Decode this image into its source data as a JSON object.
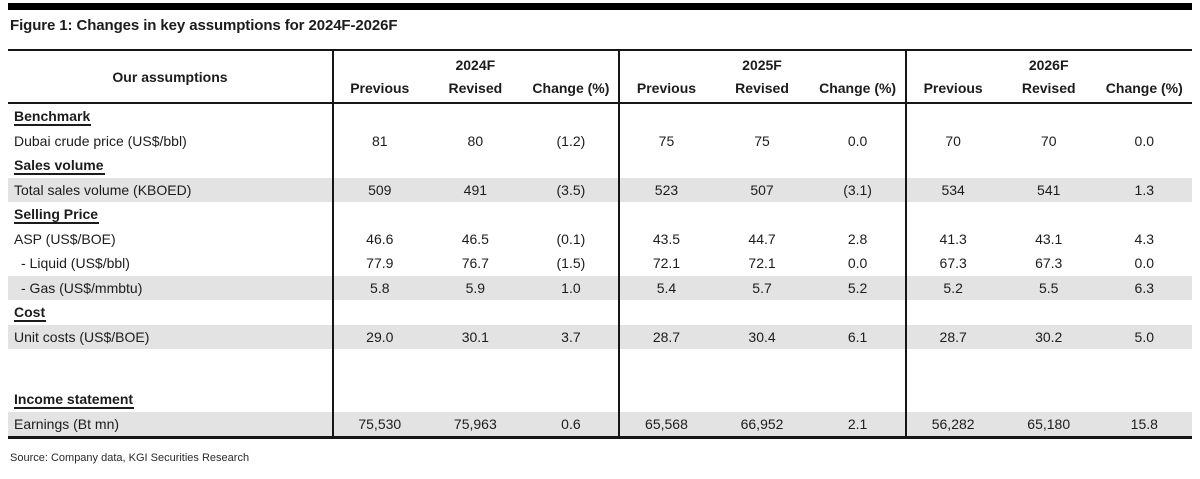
{
  "page": {
    "title": "Figure 1: Changes in key assumptions for 2024F-2026F",
    "source": "Source: Company data, KGI Securities Research"
  },
  "colors": {
    "shaded_row": "#e3e3e3",
    "rule": "#161616",
    "text": "#1c1c1c",
    "top_bar": "#000000"
  },
  "table": {
    "row_header": "Our assumptions",
    "year_groups": [
      {
        "label": "2024F",
        "columns": [
          "Previous",
          "Revised",
          "Change (%)"
        ]
      },
      {
        "label": "2025F",
        "columns": [
          "Previous",
          "Revised",
          "Change (%)"
        ]
      },
      {
        "label": "2026F",
        "columns": [
          "Previous",
          "Revised",
          "Change (%)"
        ]
      }
    ],
    "rows": [
      {
        "type": "section",
        "label": "Benchmark"
      },
      {
        "type": "data",
        "label": "Dubai crude price (US$/bbl)",
        "shaded": false,
        "indent": false,
        "values": [
          "81",
          "80",
          "(1.2)",
          "75",
          "75",
          "0.0",
          "70",
          "70",
          "0.0"
        ]
      },
      {
        "type": "section",
        "label": "Sales volume"
      },
      {
        "type": "data",
        "label": "Total sales volume (KBOED)",
        "shaded": true,
        "indent": false,
        "values": [
          "509",
          "491",
          "(3.5)",
          "523",
          "507",
          "(3.1)",
          "534",
          "541",
          "1.3"
        ]
      },
      {
        "type": "section",
        "label": "Selling Price"
      },
      {
        "type": "data",
        "label": "ASP (US$/BOE)",
        "shaded": false,
        "indent": false,
        "values": [
          "46.6",
          "46.5",
          "(0.1)",
          "43.5",
          "44.7",
          "2.8",
          "41.3",
          "43.1",
          "4.3"
        ]
      },
      {
        "type": "data",
        "label": "- Liquid (US$/bbl)",
        "shaded": false,
        "indent": true,
        "values": [
          "77.9",
          "76.7",
          "(1.5)",
          "72.1",
          "72.1",
          "0.0",
          "67.3",
          "67.3",
          "0.0"
        ]
      },
      {
        "type": "data",
        "label": "- Gas (US$/mmbtu)",
        "shaded": true,
        "indent": true,
        "values": [
          "5.8",
          "5.9",
          "1.0",
          "5.4",
          "5.7",
          "5.2",
          "5.2",
          "5.5",
          "6.3"
        ]
      },
      {
        "type": "section",
        "label": "Cost"
      },
      {
        "type": "data",
        "label": "Unit costs (US$/BOE)",
        "shaded": true,
        "indent": false,
        "values": [
          "29.0",
          "30.1",
          "3.7",
          "28.7",
          "30.4",
          "6.1",
          "28.7",
          "30.2",
          "5.0"
        ]
      },
      {
        "type": "spacer"
      },
      {
        "type": "section",
        "label": "Income statement"
      },
      {
        "type": "data",
        "label": "Earnings (Bt mn)",
        "shaded": true,
        "indent": false,
        "values": [
          "75,530",
          "75,963",
          "0.6",
          "65,568",
          "66,952",
          "2.1",
          "56,282",
          "65,180",
          "15.8"
        ]
      }
    ]
  }
}
